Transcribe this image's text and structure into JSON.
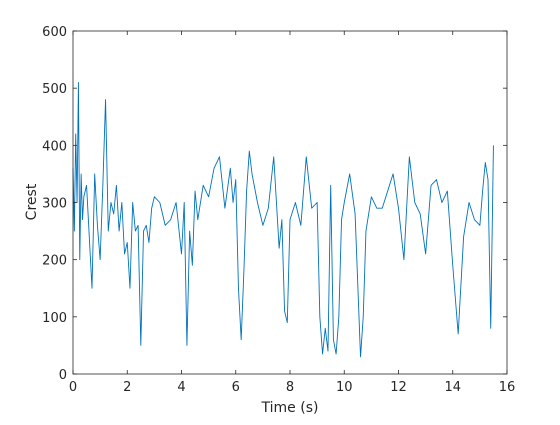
{
  "chart_data": {
    "type": "line",
    "title": "",
    "xlabel": "Time (s)",
    "ylabel": "Crest",
    "xlim": [
      0,
      16
    ],
    "ylim": [
      0,
      600
    ],
    "xticks": [
      0,
      2,
      4,
      6,
      8,
      10,
      12,
      14,
      16
    ],
    "yticks": [
      0,
      100,
      200,
      300,
      400,
      500,
      600
    ],
    "xtick_labels": [
      "0",
      "2",
      "4",
      "6",
      "8",
      "10",
      "12",
      "14",
      "16"
    ],
    "ytick_labels": [
      "0",
      "100",
      "200",
      "300",
      "400",
      "500",
      "600"
    ],
    "grid": false,
    "legend": false,
    "series": [
      {
        "color": "#0072BD",
        "x": [
          0,
          0.05,
          0.1,
          0.15,
          0.2,
          0.25,
          0.3,
          0.35,
          0.4,
          0.5,
          0.6,
          0.7,
          0.8,
          0.9,
          1.0,
          1.1,
          1.2,
          1.3,
          1.4,
          1.5,
          1.6,
          1.7,
          1.8,
          1.9,
          2.0,
          2.1,
          2.2,
          2.3,
          2.4,
          2.5,
          2.6,
          2.7,
          2.8,
          2.9,
          3.0,
          3.2,
          3.4,
          3.6,
          3.8,
          4.0,
          4.1,
          4.2,
          4.3,
          4.4,
          4.5,
          4.6,
          4.8,
          5.0,
          5.2,
          5.4,
          5.6,
          5.8,
          5.9,
          6.0,
          6.1,
          6.2,
          6.3,
          6.4,
          6.5,
          6.6,
          6.8,
          7.0,
          7.2,
          7.4,
          7.6,
          7.7,
          7.8,
          7.9,
          8.0,
          8.2,
          8.4,
          8.6,
          8.8,
          9.0,
          9.1,
          9.2,
          9.3,
          9.4,
          9.5,
          9.6,
          9.7,
          9.8,
          9.9,
          10.0,
          10.2,
          10.4,
          10.6,
          10.7,
          10.8,
          11.0,
          11.2,
          11.4,
          11.6,
          11.8,
          12.0,
          12.2,
          12.4,
          12.6,
          12.8,
          13.0,
          13.2,
          13.4,
          13.6,
          13.8,
          14.0,
          14.2,
          14.4,
          14.6,
          14.8,
          15.0,
          15.1,
          15.2,
          15.3,
          15.4,
          15.5
        ],
        "y": [
          360,
          250,
          420,
          300,
          510,
          200,
          350,
          270,
          310,
          330,
          240,
          150,
          350,
          260,
          200,
          330,
          480,
          250,
          300,
          280,
          330,
          250,
          300,
          210,
          230,
          150,
          300,
          250,
          260,
          50,
          250,
          260,
          230,
          290,
          310,
          300,
          260,
          270,
          300,
          210,
          300,
          50,
          250,
          190,
          320,
          270,
          330,
          310,
          360,
          380,
          290,
          360,
          300,
          340,
          150,
          60,
          180,
          320,
          390,
          350,
          300,
          260,
          290,
          380,
          220,
          270,
          110,
          90,
          270,
          300,
          260,
          380,
          290,
          300,
          100,
          35,
          80,
          40,
          330,
          60,
          35,
          100,
          270,
          300,
          350,
          280,
          30,
          100,
          250,
          310,
          290,
          290,
          320,
          350,
          290,
          200,
          380,
          300,
          280,
          210,
          330,
          340,
          300,
          320,
          190,
          70,
          240,
          300,
          270,
          260,
          320,
          370,
          340,
          80,
          400
        ]
      }
    ]
  }
}
